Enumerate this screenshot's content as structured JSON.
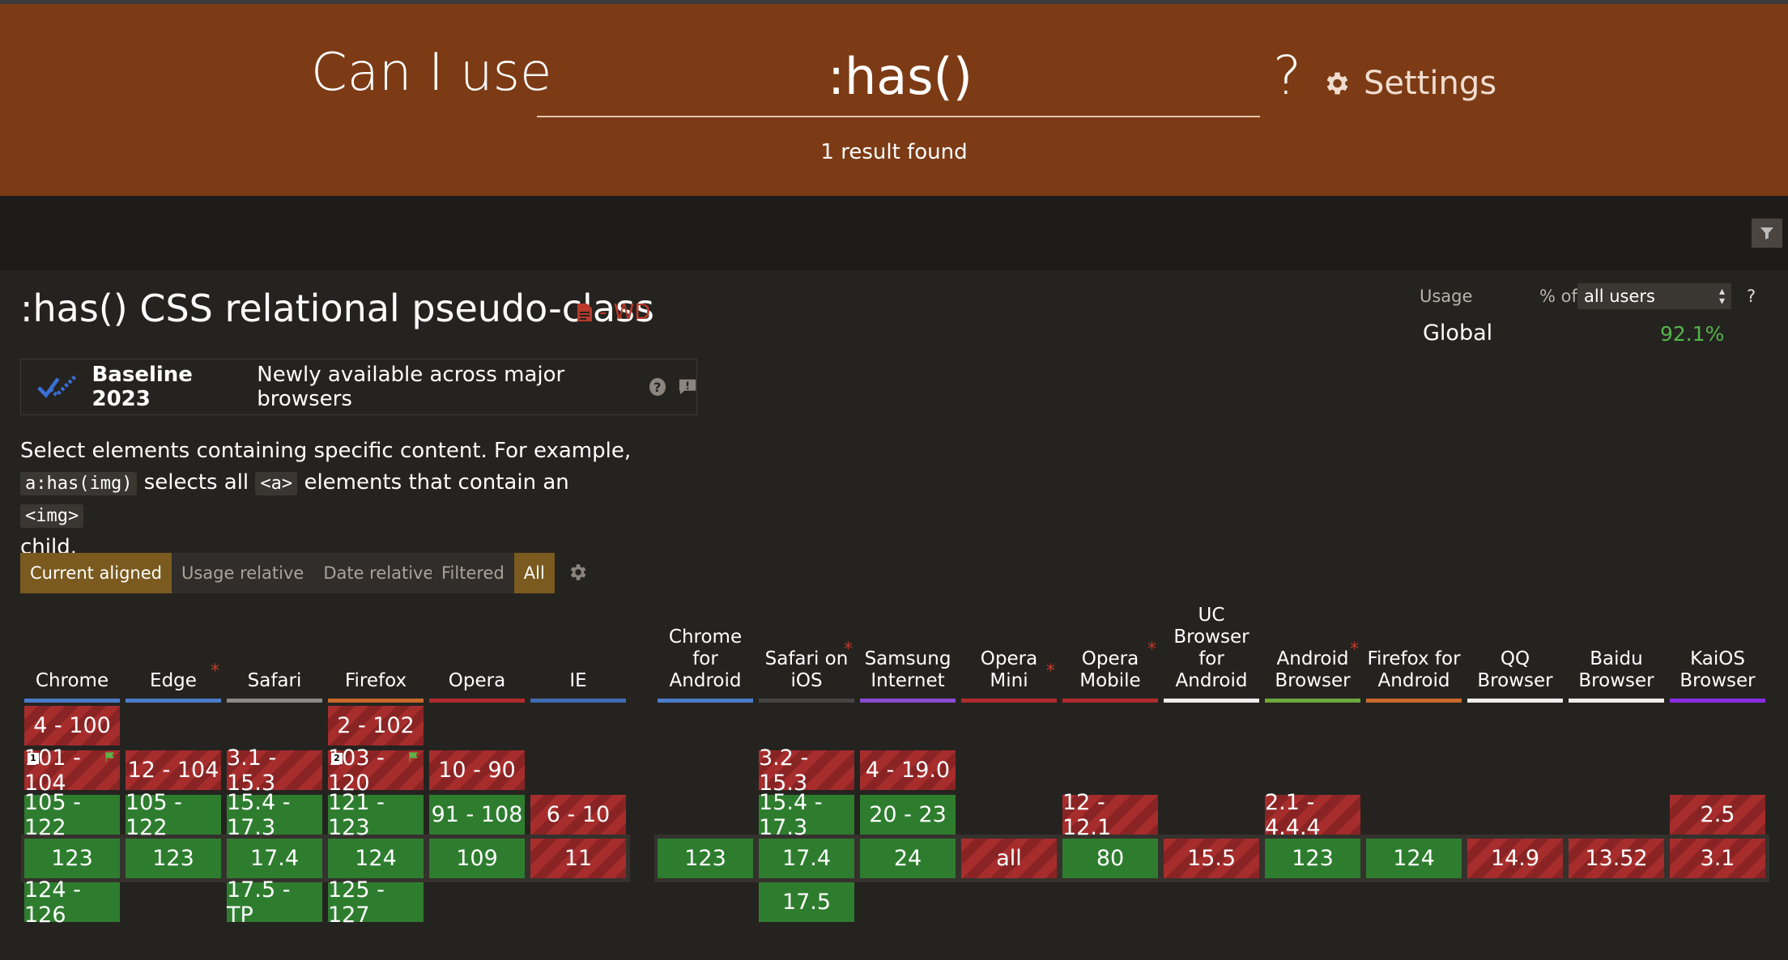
{
  "header": {
    "prefix": "Can I use",
    "search_value": ":has()",
    "suffix": "?",
    "settings_label": "Settings",
    "results_text": "1 result found"
  },
  "feature": {
    "title": ":has() CSS relational pseudo-class",
    "spec_status": "- WD",
    "baseline": {
      "year_label": "Baseline 2023",
      "description": "Newly available across major browsers"
    },
    "description": {
      "part1": "Select elements containing specific content. For example,",
      "code1": "a:has(img)",
      "part2": " selects all ",
      "code2": "<a>",
      "part3": " elements that contain an ",
      "code3": "<img>",
      "part4": "child."
    }
  },
  "usage": {
    "label": "Usage",
    "pct_of": "% of",
    "selected": "all users",
    "help": "?",
    "global_label": "Global",
    "global_value": "92.1%"
  },
  "toggles": {
    "view": [
      "Current aligned",
      "Usage relative",
      "Date relative"
    ],
    "filter": [
      "Filtered",
      "All"
    ]
  },
  "colors": {
    "supported": "#2e7d2f",
    "unsupported": "#a72d2d",
    "header_bg": "#7c3b15",
    "accent": "#7a5a1e"
  },
  "browsers": [
    {
      "name": "Chrome",
      "star": false,
      "bar": "#4a7cc9",
      "cells": [
        {
          "row": 0,
          "v": "4 - 100",
          "s": "n"
        },
        {
          "row": 1,
          "v": "101 - 104",
          "s": "n",
          "note": "1",
          "flag": true
        },
        {
          "row": 2,
          "v": "105 - 122",
          "s": "y"
        },
        {
          "row": 3,
          "v": "123",
          "s": "y"
        },
        {
          "row": 4,
          "v": "124 - 126",
          "s": "y"
        }
      ]
    },
    {
      "name": "Edge",
      "star": true,
      "bar": "#4a7cc9",
      "cells": [
        {
          "row": 1,
          "v": "12 - 104",
          "s": "n"
        },
        {
          "row": 2,
          "v": "105 - 122",
          "s": "y"
        },
        {
          "row": 3,
          "v": "123",
          "s": "y"
        }
      ]
    },
    {
      "name": "Safari",
      "star": false,
      "bar": "#8a8a8a",
      "cells": [
        {
          "row": 1,
          "v": "3.1 - 15.3",
          "s": "n"
        },
        {
          "row": 2,
          "v": "15.4 - 17.3",
          "s": "y"
        },
        {
          "row": 3,
          "v": "17.4",
          "s": "y"
        },
        {
          "row": 4,
          "v": "17.5 - TP",
          "s": "y"
        }
      ]
    },
    {
      "name": "Firefox",
      "star": false,
      "bar": "#c9692c",
      "cells": [
        {
          "row": 0,
          "v": "2 - 102",
          "s": "n"
        },
        {
          "row": 1,
          "v": "103 - 120",
          "s": "n",
          "note": "2",
          "flag": true
        },
        {
          "row": 2,
          "v": "121 - 123",
          "s": "y"
        },
        {
          "row": 3,
          "v": "124",
          "s": "y"
        },
        {
          "row": 4,
          "v": "125 - 127",
          "s": "y"
        }
      ]
    },
    {
      "name": "Opera",
      "star": false,
      "bar": "#b02b2b",
      "cells": [
        {
          "row": 1,
          "v": "10 - 90",
          "s": "n"
        },
        {
          "row": 2,
          "v": "91 - 108",
          "s": "y"
        },
        {
          "row": 3,
          "v": "109",
          "s": "y"
        }
      ]
    },
    {
      "name": "IE",
      "star": false,
      "bar": "#3f6bb0",
      "cells": [
        {
          "row": 2,
          "v": "6 - 10",
          "s": "n"
        },
        {
          "row": 3,
          "v": "11",
          "s": "n"
        }
      ]
    }
  ],
  "mobile_browsers": [
    {
      "name": "Chrome for Android",
      "lines": [
        "Chrome",
        "for",
        "Android"
      ],
      "star": false,
      "bar": "#4a7cc9",
      "cells": [
        {
          "row": 3,
          "v": "123",
          "s": "y"
        }
      ]
    },
    {
      "name": "Safari on iOS",
      "lines": [
        "Safari on",
        "iOS"
      ],
      "star": true,
      "bar": "#444",
      "cells": [
        {
          "row": 1,
          "v": "3.2 - 15.3",
          "s": "n"
        },
        {
          "row": 2,
          "v": "15.4 - 17.3",
          "s": "y"
        },
        {
          "row": 3,
          "v": "17.4",
          "s": "y"
        },
        {
          "row": 4,
          "v": "17.5",
          "s": "y"
        }
      ]
    },
    {
      "name": "Samsung Internet",
      "lines": [
        "Samsung",
        "Internet"
      ],
      "star": false,
      "bar": "#8a4ad0",
      "cells": [
        {
          "row": 1,
          "v": "4 - 19.0",
          "s": "n"
        },
        {
          "row": 2,
          "v": "20 - 23",
          "s": "y"
        },
        {
          "row": 3,
          "v": "24",
          "s": "y"
        }
      ]
    },
    {
      "name": "Opera Mini",
      "lines": [
        "Opera Mini"
      ],
      "star": true,
      "bar": "#b02b2b",
      "cells": [
        {
          "row": 3,
          "v": "all",
          "s": "n"
        }
      ]
    },
    {
      "name": "Opera Mobile",
      "lines": [
        "Opera",
        "Mobile"
      ],
      "star": true,
      "bar": "#b02b2b",
      "cells": [
        {
          "row": 2,
          "v": "12 - 12.1",
          "s": "n"
        },
        {
          "row": 3,
          "v": "80",
          "s": "y"
        }
      ]
    },
    {
      "name": "UC Browser for Android",
      "lines": [
        "UC",
        "Browser",
        "for",
        "Android"
      ],
      "star": false,
      "bar": "#eee",
      "cells": [
        {
          "row": 3,
          "v": "15.5",
          "s": "n"
        }
      ]
    },
    {
      "name": "Android Browser",
      "lines": [
        "Android",
        "Browser"
      ],
      "star": true,
      "bar": "#6fa83a",
      "cells": [
        {
          "row": 2,
          "v": "2.1 - 4.4.4",
          "s": "n"
        },
        {
          "row": 3,
          "v": "123",
          "s": "y"
        }
      ]
    },
    {
      "name": "Firefox for Android",
      "lines": [
        "Firefox for",
        "Android"
      ],
      "star": false,
      "bar": "#c9692c",
      "cells": [
        {
          "row": 3,
          "v": "124",
          "s": "y"
        }
      ]
    },
    {
      "name": "QQ Browser",
      "lines": [
        "QQ",
        "Browser"
      ],
      "star": false,
      "bar": "#eee",
      "cells": [
        {
          "row": 3,
          "v": "14.9",
          "s": "n"
        }
      ]
    },
    {
      "name": "Baidu Browser",
      "lines": [
        "Baidu",
        "Browser"
      ],
      "star": false,
      "bar": "#eee",
      "cells": [
        {
          "row": 3,
          "v": "13.52",
          "s": "n"
        }
      ]
    },
    {
      "name": "KaiOS Browser",
      "lines": [
        "KaiOS",
        "Browser"
      ],
      "star": false,
      "bar": "#8a2be2",
      "cells": [
        {
          "row": 2,
          "v": "2.5",
          "s": "n"
        },
        {
          "row": 3,
          "v": "3.1",
          "s": "n"
        }
      ]
    }
  ]
}
